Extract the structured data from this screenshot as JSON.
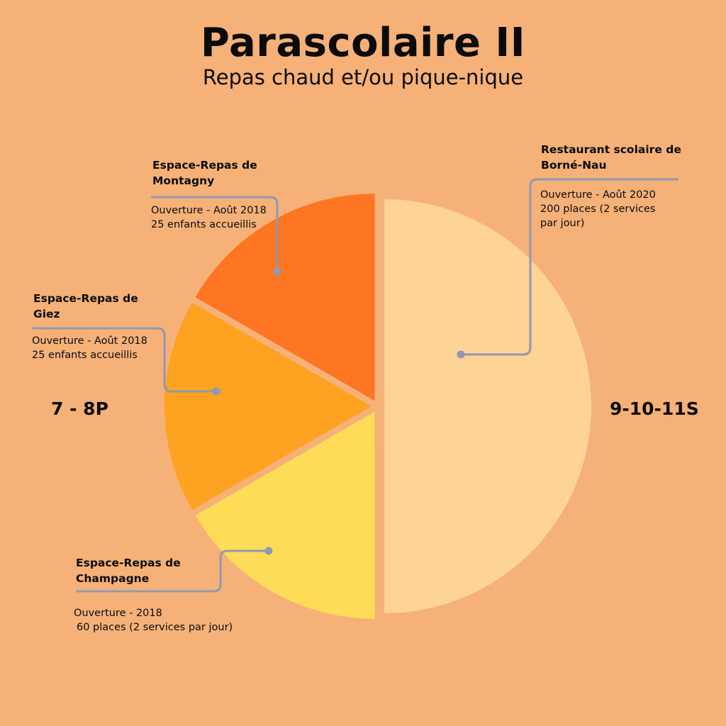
{
  "title": "Parascolaire II",
  "subtitle": "Repas chaud et/ou pique-nique",
  "group_labels": {
    "left": "7 - 8P",
    "right": "9-10-11S"
  },
  "colors": {
    "background": "#f5b178",
    "montagny": "#fe7522",
    "giez": "#fea222",
    "champagne": "#fedc58",
    "borne_nau": "#fed396",
    "connector": "#8f99b0"
  },
  "callouts": {
    "montagny": {
      "title_line1": "Espace-Repas de",
      "title_line2": "Montagny",
      "line1": "Ouverture - Août 2018",
      "line2": "25 enfants accueillis"
    },
    "giez": {
      "title_line1": "Espace-Repas de",
      "title_line2": "Giez",
      "line1": "Ouverture - Août 2018",
      "line2": "25 enfants accueillis"
    },
    "champagne": {
      "title_line1": "Espace-Repas de",
      "title_line2": "Champagne",
      "line1": "Ouverture -  2018",
      "line2": "60 places (2 services par jour)"
    },
    "borne_nau": {
      "title_line1": "Restaurant scolaire de",
      "title_line2": "Borné-Nau",
      "line1": "Ouverture - Août 2020",
      "line2": "200 places (2 services",
      "line3": "par jour)"
    }
  },
  "chart_data": {
    "type": "pie",
    "title": "Parascolaire II",
    "subtitle": "Repas chaud et/ou pique-nique",
    "slices": [
      {
        "name": "Restaurant scolaire de Borné-Nau",
        "value": 50,
        "color": "#fed396"
      },
      {
        "name": "Espace-Repas de Champagne",
        "value": 16.67,
        "color": "#fedc58"
      },
      {
        "name": "Espace-Repas de Giez",
        "value": 16.67,
        "color": "#fea222"
      },
      {
        "name": "Espace-Repas de Montagny",
        "value": 16.67,
        "color": "#fe7522"
      }
    ],
    "start": "12 o'clock",
    "direction": "clockwise",
    "slice_separation": true
  }
}
